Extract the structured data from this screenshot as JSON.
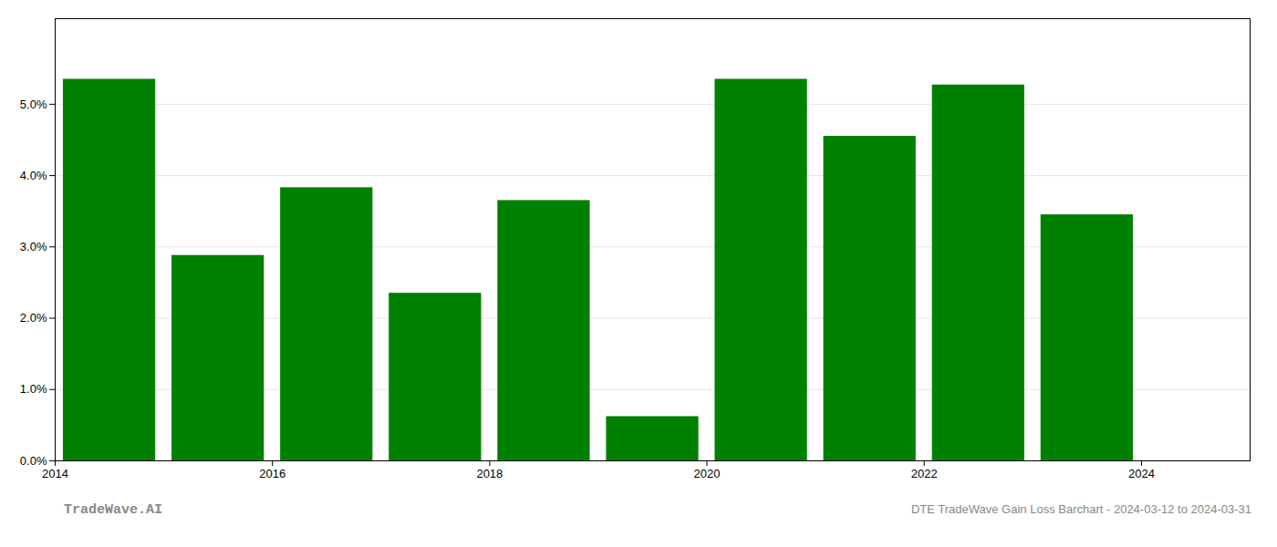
{
  "chart_data": {
    "type": "bar",
    "x": [
      2014,
      2015,
      2016,
      2017,
      2018,
      2019,
      2020,
      2021,
      2022,
      2023
    ],
    "values": [
      0.0535,
      0.0288,
      0.0383,
      0.0235,
      0.0365,
      0.0062,
      0.0535,
      0.0455,
      0.0527,
      0.0345
    ],
    "color": "#008000",
    "xlim": [
      2013.5,
      2024.5
    ],
    "xticks": [
      {
        "value": 2013.5,
        "label": "2014"
      },
      {
        "value": 2015.5,
        "label": "2016"
      },
      {
        "value": 2017.5,
        "label": "2018"
      },
      {
        "value": 2019.5,
        "label": "2020"
      },
      {
        "value": 2021.5,
        "label": "2022"
      },
      {
        "value": 2023.5,
        "label": "2024"
      }
    ],
    "ylim": [
      0,
      0.062
    ],
    "yticks": [
      {
        "value": 0.0,
        "label": "0.0%"
      },
      {
        "value": 0.01,
        "label": "1.0%"
      },
      {
        "value": 0.02,
        "label": "2.0%"
      },
      {
        "value": 0.03,
        "label": "3.0%"
      },
      {
        "value": 0.04,
        "label": "4.0%"
      },
      {
        "value": 0.05,
        "label": "5.0%"
      }
    ],
    "grid": true,
    "annotations": [
      "TradeWave.AI",
      "DTE TradeWave Gain Loss Barchart - 2024-03-12 to 2024-03-31"
    ]
  }
}
